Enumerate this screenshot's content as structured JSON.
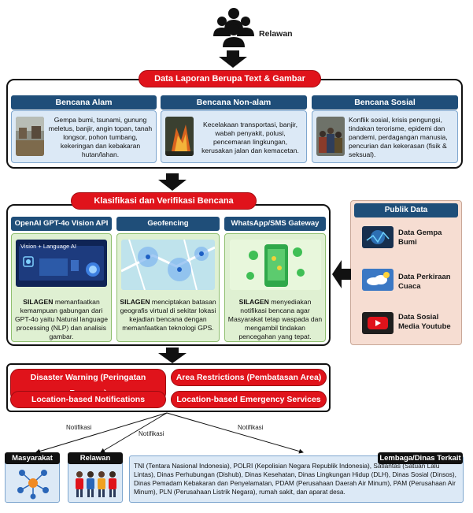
{
  "top": {
    "actor_label": "Relawan",
    "actor_icon": "people-group-icon"
  },
  "report": {
    "title": "Data Laporan Berupa Text & Gambar",
    "categories": [
      {
        "title": "Bencana Alam",
        "text": "Gempa bumi, tsunami, gunung meletus, banjir, angin topan, tanah longsor, pohon tumbang, kekeringan dan kebakaran hutan/lahan."
      },
      {
        "title": "Bencana Non-alam",
        "text": "Kecelakaan transportasi, banjir, wabah penyakit, polusi, pencemaran lingkungan, kerusakan jalan dan kemacetan."
      },
      {
        "title": "Bencana Sosial",
        "text": "Konflik sosial, krisis pengungsi, tindakan terorisme, epidemi dan pandemi, perdagangan manusia, pencurian dan kekerasan (fisik & seksual)."
      }
    ]
  },
  "classify": {
    "title": "Klasifikasi dan Verifikasi Bencana",
    "modules": [
      {
        "title": "OpenAI GPT-4o Vision API",
        "image_label": "Vision + Language AI",
        "bold": "SILAGEN",
        "text": " memanfaatkan kemampuan gabungan dari GPT-4o yaitu Natural language processing (NLP) dan analisis gambar."
      },
      {
        "title": "Geofencing",
        "bold": "SILAGEN",
        "text": " menciptakan batasan geografis virtual di sekitar lokasi kejadian bencana dengan memanfaatkan teknologi GPS."
      },
      {
        "title": "WhatsApp/SMS Gateway",
        "bold": "SILAGEN",
        "text": " menyediakan notifikasi bencana agar Masyarakat tetap waspada dan mengambil tindakan pencegahan yang tepat."
      }
    ]
  },
  "public_data": {
    "title": "Publik Data",
    "items": [
      {
        "label": "Data Gempa Bumi"
      },
      {
        "label": "Data Perkiraan Cuaca"
      },
      {
        "label": "Data Sosial Media Youtube"
      }
    ]
  },
  "outputs": [
    "Disaster Warning (Peringatan Bencana)",
    "Area Restrictions (Pembatasan Area)",
    "Location-based Notifications",
    "Location-based Emergency Services"
  ],
  "notifikasi_label": "Notifikasi",
  "recipients": {
    "masyarakat": "Masyarakat",
    "relawan": "Relawan",
    "lembaga_title": "Lembaga/Dinas Terkait",
    "lembaga_text": "TNI (Tentara Nasional Indonesia), POLRI (Kepolisian Negara Republik Indonesia), Satlantas (Satuan Lalu Lintas), Dinas Perhubungan (Dishub), Dinas Kesehatan, Dinas Lingkungan Hidup (DLH), Dinas Sosial (Dinsos), Dinas Pemadam Kebakaran dan Penyelamatan, PDAM (Perusahaan Daerah Air Minum), PAM (Perusahaan Air Minum), PLN (Perusahaan Listrik Negara), rumah sakit, dan aparat desa."
  },
  "colors": {
    "red": "#e0131b",
    "navy": "#1f4e79",
    "card_blue": "#dce9f6",
    "card_green": "#dff0d2",
    "public_bg": "#f6ddd2"
  }
}
